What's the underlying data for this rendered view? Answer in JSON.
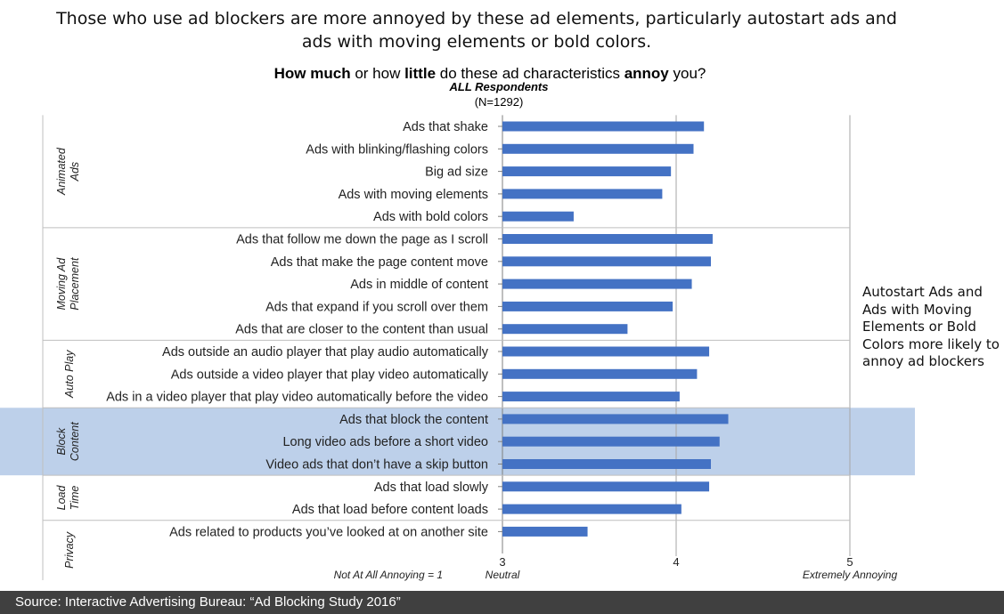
{
  "headline": "Those who use ad blockers are more annoyed by these ad elements, particularly autostart ads and ads with moving elements or bold colors.",
  "question": {
    "part1": "How much",
    "part2": " or how ",
    "part3": "little",
    "part4": " do these ad characteristics ",
    "part5": "annoy",
    "part6": " you?"
  },
  "respondents": "ALL Respondents",
  "sample": "(N=1292)",
  "annotation": "Autostart Ads and Ads with Moving Elements or Bold Colors more likely to annoy ad blockers",
  "source": "Source: Interactive Advertising Bureau: “Ad Blocking Study 2016”",
  "colors": {
    "bar": "#4472c4",
    "highlight": "#bdd0ea",
    "gridline": "#a6a6a6",
    "separator": "#bfbfbf"
  },
  "chart_data": {
    "type": "bar",
    "orientation": "horizontal",
    "xlim": [
      3,
      5
    ],
    "ticks": [
      {
        "value": 3,
        "label": "3",
        "sublabel": "Neutral"
      },
      {
        "value": 4,
        "label": "4",
        "sublabel": ""
      },
      {
        "value": 5,
        "label": "5",
        "sublabel": "Extremely Annoying"
      }
    ],
    "scale_note": "Not At All Annoying = 1",
    "highlighted_group": "Block Content",
    "groups": [
      {
        "name": "Animated Ads",
        "items": [
          {
            "label": "Ads that shake",
            "value": 4.16
          },
          {
            "label": "Ads with blinking/flashing colors",
            "value": 4.1
          },
          {
            "label": "Big ad size",
            "value": 3.97
          },
          {
            "label": "Ads with moving elements",
            "value": 3.92
          },
          {
            "label": "Ads with bold colors",
            "value": 3.41
          }
        ]
      },
      {
        "name": "Moving Ad Placement",
        "items": [
          {
            "label": "Ads that follow me down the page as I scroll",
            "value": 4.21
          },
          {
            "label": "Ads that make the page content move",
            "value": 4.2
          },
          {
            "label": "Ads in middle of content",
            "value": 4.09
          },
          {
            "label": "Ads that expand if you scroll over them",
            "value": 3.98
          },
          {
            "label": "Ads that are closer to the content than usual",
            "value": 3.72
          }
        ]
      },
      {
        "name": "Auto Play",
        "items": [
          {
            "label": "Ads outside an audio player that play audio automatically",
            "value": 4.19
          },
          {
            "label": "Ads outside a video player that play video automatically",
            "value": 4.12
          },
          {
            "label": "Ads in a video player that play video automatically before the video",
            "value": 4.02
          }
        ]
      },
      {
        "name": "Block Content",
        "items": [
          {
            "label": "Ads that block the content",
            "value": 4.3
          },
          {
            "label": "Long video ads before a short video",
            "value": 4.25
          },
          {
            "label": "Video ads that don’t have a skip button",
            "value": 4.2
          }
        ]
      },
      {
        "name": "Load Time",
        "items": [
          {
            "label": "Ads that load slowly",
            "value": 4.19
          },
          {
            "label": "Ads that load before content loads",
            "value": 4.03
          }
        ]
      },
      {
        "name": "Privacy",
        "items": [
          {
            "label": "Ads related to products you’ve looked at on another site",
            "value": 3.49
          }
        ]
      }
    ]
  }
}
